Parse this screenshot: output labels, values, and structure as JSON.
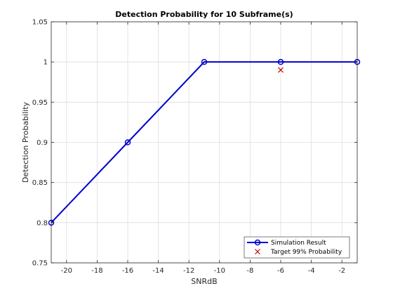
{
  "chart_data": {
    "type": "line",
    "title": "Detection Probability for 10 Subframe(s)",
    "xlabel": "SNRdB",
    "ylabel": "Detection Probability",
    "xlim": [
      -21,
      -1
    ],
    "ylim": [
      0.75,
      1.05
    ],
    "xticks": [
      -20,
      -18,
      -16,
      -14,
      -12,
      -10,
      -8,
      -6,
      -4,
      -2
    ],
    "yticks": [
      0.75,
      0.8,
      0.85,
      0.9,
      0.95,
      1,
      1.05
    ],
    "xtick_labels": [
      "-20",
      "-18",
      "-16",
      "-14",
      "-12",
      "-10",
      "-8",
      "-6",
      "-4",
      "-2"
    ],
    "ytick_labels": [
      "0.75",
      "0.8",
      "0.85",
      "0.9",
      "0.95",
      "1",
      "1.05"
    ],
    "grid": true,
    "legend_position": "bottom-right",
    "series": [
      {
        "name": "Simulation Result",
        "marker": "circle",
        "color": "#0000CC",
        "x": [
          -21,
          -16,
          -11,
          -6,
          -1
        ],
        "y": [
          0.8,
          0.9,
          1.0,
          1.0,
          1.0
        ]
      },
      {
        "name": "Target 99% Probability",
        "marker": "x",
        "color": "#CC0000",
        "x": [
          -6
        ],
        "y": [
          0.99
        ]
      }
    ]
  }
}
